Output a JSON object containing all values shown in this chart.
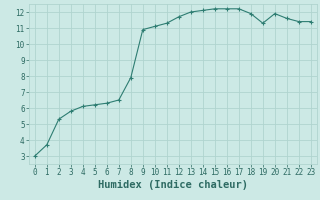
{
  "x": [
    0,
    1,
    2,
    3,
    4,
    5,
    6,
    7,
    8,
    9,
    10,
    11,
    12,
    13,
    14,
    15,
    16,
    17,
    18,
    19,
    20,
    21,
    22,
    23
  ],
  "y": [
    3.0,
    3.7,
    5.3,
    5.8,
    6.1,
    6.2,
    6.3,
    6.5,
    7.9,
    10.9,
    11.1,
    11.3,
    11.7,
    12.0,
    12.1,
    12.2,
    12.2,
    12.2,
    11.9,
    11.3,
    11.9,
    11.6,
    11.4,
    11.4
  ],
  "line_color": "#2e7d72",
  "marker_color": "#2e7d72",
  "bg_color": "#cce9e5",
  "grid_color": "#b0d4cf",
  "xlabel": "Humidex (Indice chaleur)",
  "xlim": [
    -0.5,
    23.5
  ],
  "ylim": [
    2.5,
    12.5
  ],
  "yticks": [
    3,
    4,
    5,
    6,
    7,
    8,
    9,
    10,
    11,
    12
  ],
  "xticks": [
    0,
    1,
    2,
    3,
    4,
    5,
    6,
    7,
    8,
    9,
    10,
    11,
    12,
    13,
    14,
    15,
    16,
    17,
    18,
    19,
    20,
    21,
    22,
    23
  ],
  "tick_fontsize": 5.5,
  "xlabel_fontsize": 7.5,
  "label_color": "#2e6b63"
}
